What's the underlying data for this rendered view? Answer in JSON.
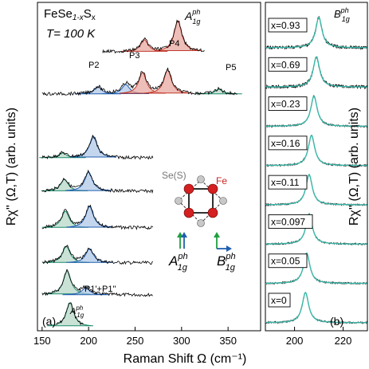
{
  "chart_data": [
    {
      "id": "a",
      "type": "line",
      "panel_label": "(a)",
      "compound": "FeSe",
      "compound_sub": "1-x",
      "compound_s": "S",
      "compound_x": "x",
      "temperature": "T= 100 K",
      "ylabel_main": "Rχ'' (Ω,T) (arb. units)",
      "ylabel_note": "",
      "xlabel": "Raman Shift Ω (cm⁻¹)",
      "xlim": [
        145,
        385
      ],
      "xticks": [
        150,
        200,
        250,
        300,
        350
      ],
      "annotations": {
        "p1": "P1'+P1''",
        "p2": "P2",
        "p3": "P3",
        "p4": "P4",
        "p5": "P5",
        "a1g_top": "A",
        "a1g_top_sup": "ph",
        "a1g_top_sub": "1g",
        "a1g_bottom": "A",
        "a1g_bottom_sup": "ph",
        "a1g_bottom_sub": "1g"
      },
      "spectra_order": [
        "x=0",
        "x=0.05",
        "x=0.097",
        "x=0.11",
        "x=0.16",
        "x=0.23",
        "x=0.69",
        "x=0.93"
      ],
      "spectra_peaks": [
        {
          "x": "0",
          "peaks": [
            [
              180,
              1.0
            ]
          ],
          "range": [
            165,
            195
          ]
        },
        {
          "x": "0.05",
          "peaks": [
            [
              177,
              1.0
            ],
            [
              197,
              0.3
            ]
          ],
          "range": [
            150,
            270
          ]
        },
        {
          "x": "0.097",
          "peaks": [
            [
              176,
              0.7
            ],
            [
              201,
              0.6
            ]
          ],
          "range": [
            150,
            270
          ]
        },
        {
          "x": "0.11",
          "peaks": [
            [
              175,
              0.7
            ],
            [
              201,
              0.9
            ]
          ],
          "range": [
            150,
            270
          ]
        },
        {
          "x": "0.16",
          "peaks": [
            [
              174,
              0.5
            ],
            [
              200,
              0.8
            ]
          ],
          "range": [
            150,
            270
          ]
        },
        {
          "x": "0.23",
          "peaks": [
            [
              172,
              0.2
            ],
            [
              205,
              0.9
            ]
          ],
          "range": [
            150,
            270
          ]
        },
        {
          "x": "0.69",
          "peaks": [
            [
              210,
              0.3
            ],
            [
              240,
              0.4
            ],
            [
              258,
              0.9
            ],
            [
              285,
              1.0
            ],
            [
              340,
              0.2
            ]
          ],
          "range": [
            150,
            360
          ]
        },
        {
          "x": "0.93",
          "peaks": [
            [
              260,
              0.5
            ],
            [
              296,
              1.3
            ]
          ],
          "range": [
            215,
            325
          ]
        }
      ]
    },
    {
      "id": "b",
      "type": "line",
      "panel_label": "(b)",
      "ylabel": "Rχ'' (Ω,T) (arb. units)",
      "xlim": [
        188,
        230
      ],
      "xticks": [
        200,
        220
      ],
      "mode": "B",
      "mode_sup": "ph",
      "mode_sub": "1g",
      "concentrations": [
        "x=0.93",
        "x=0.69",
        "x=0.23",
        "x=0.16",
        "x=0.11",
        "x=0.097",
        "x=0.05",
        "x=0"
      ],
      "peak_positions": [
        210,
        209,
        208,
        207,
        206,
        206,
        205,
        204.5
      ]
    }
  ],
  "inset": {
    "se_label": "Se(S)",
    "fe_label": "Fe",
    "a1g": "A",
    "a1g_sup": "ph",
    "a1g_sub": "1g",
    "b1g": "B",
    "b1g_sup": "ph",
    "b1g_sub": "1g"
  },
  "colors": {
    "raw": "#000000",
    "fit_main": "#1a8a6a",
    "fit_blue": "#1f5fb0",
    "fill_green": "#b8d8c8",
    "fill_blue": "#b0c8e8",
    "fill_red": "#e8a8a0",
    "fit_red": "#c0392b",
    "fit_purple": "#6a3da8",
    "panel_b_fit": "#3ab8a8",
    "fe": "#cc2222",
    "se": "#999999"
  }
}
